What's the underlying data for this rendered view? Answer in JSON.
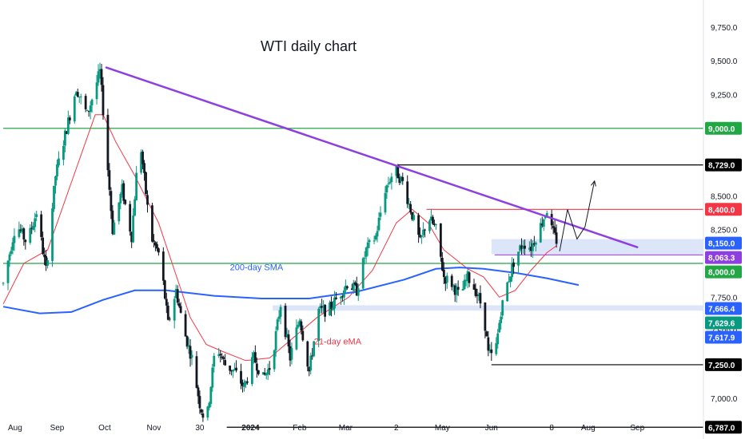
{
  "chart_data": {
    "type": "candlestick",
    "title": "WTI daily chart",
    "xlabel": "",
    "ylabel": "",
    "ylim": [
      6700,
      9950
    ],
    "grid": false,
    "x_ticks": [
      {
        "label": "Aug",
        "day": 0
      },
      {
        "label": "Sep",
        "day": 31
      },
      {
        "label": "Oct",
        "day": 61
      },
      {
        "label": "Nov",
        "day": 92
      },
      {
        "label": "30",
        "day": 121
      },
      {
        "label": "2024",
        "day": 153
      },
      {
        "label": "Feb",
        "day": 184
      },
      {
        "label": "Mar",
        "day": 213
      },
      {
        "label": "2",
        "day": 245
      },
      {
        "label": "May",
        "day": 274
      },
      {
        "label": "Jun",
        "day": 305
      },
      {
        "label": "8",
        "day": 343
      },
      {
        "label": "Aug",
        "day": 366
      },
      {
        "label": "Sep",
        "day": 397
      }
    ],
    "y_ticks": [
      "7,000.0",
      "7,250.0",
      "7,500.0",
      "7,750.0",
      "8,250.0",
      "8,500.0",
      "9,250.0",
      "9,500.0",
      "9,750.0"
    ],
    "price_path": [
      [
        -3,
        7850
      ],
      [
        5,
        8300
      ],
      [
        12,
        8150
      ],
      [
        18,
        8380
      ],
      [
        24,
        7950
      ],
      [
        30,
        8650
      ],
      [
        37,
        9000
      ],
      [
        43,
        9300
      ],
      [
        50,
        9100
      ],
      [
        58,
        9420
      ],
      [
        62,
        8850
      ],
      [
        66,
        8250
      ],
      [
        72,
        8550
      ],
      [
        78,
        8200
      ],
      [
        83,
        8950
      ],
      [
        90,
        8200
      ],
      [
        96,
        8050
      ],
      [
        101,
        7550
      ],
      [
        106,
        7800
      ],
      [
        111,
        7500
      ],
      [
        116,
        7300
      ],
      [
        121,
        6960
      ],
      [
        125,
        6800
      ],
      [
        131,
        7400
      ],
      [
        137,
        7250
      ],
      [
        143,
        7200
      ],
      [
        149,
        7080
      ],
      [
        155,
        7300
      ],
      [
        161,
        7150
      ],
      [
        166,
        7250
      ],
      [
        172,
        7700
      ],
      [
        178,
        7300
      ],
      [
        184,
        7600
      ],
      [
        190,
        7200
      ],
      [
        196,
        7650
      ],
      [
        202,
        7650
      ],
      [
        208,
        7750
      ],
      [
        214,
        7850
      ],
      [
        220,
        7800
      ],
      [
        226,
        8100
      ],
      [
        232,
        8200
      ],
      [
        238,
        8550
      ],
      [
        244,
        8700
      ],
      [
        249,
        8600
      ],
      [
        254,
        8400
      ],
      [
        260,
        8150
      ],
      [
        265,
        8350
      ],
      [
        270,
        8250
      ],
      [
        275,
        7900
      ],
      [
        280,
        7850
      ],
      [
        285,
        7750
      ],
      [
        290,
        7900
      ],
      [
        295,
        7800
      ],
      [
        300,
        7650
      ],
      [
        303,
        7330
      ],
      [
        307,
        7300
      ],
      [
        311,
        7650
      ],
      [
        315,
        7850
      ],
      [
        320,
        8050
      ],
      [
        325,
        8150
      ],
      [
        330,
        8120
      ],
      [
        335,
        8250
      ],
      [
        340,
        8400
      ],
      [
        343,
        8250
      ],
      [
        346,
        8170
      ]
    ],
    "series": [
      {
        "name": "21-day eMA",
        "color": "#f23645",
        "points": [
          [
            -3,
            7700
          ],
          [
            10,
            8000
          ],
          [
            25,
            8100
          ],
          [
            40,
            8600
          ],
          [
            55,
            9100
          ],
          [
            60,
            9100
          ],
          [
            68,
            8900
          ],
          [
            80,
            8650
          ],
          [
            95,
            8300
          ],
          [
            105,
            7950
          ],
          [
            115,
            7600
          ],
          [
            125,
            7400
          ],
          [
            135,
            7350
          ],
          [
            150,
            7280
          ],
          [
            165,
            7300
          ],
          [
            180,
            7450
          ],
          [
            195,
            7600
          ],
          [
            215,
            7750
          ],
          [
            230,
            7950
          ],
          [
            245,
            8300
          ],
          [
            255,
            8400
          ],
          [
            265,
            8300
          ],
          [
            275,
            8100
          ],
          [
            290,
            7960
          ],
          [
            300,
            7900
          ],
          [
            310,
            7750
          ],
          [
            320,
            7800
          ],
          [
            330,
            7950
          ],
          [
            340,
            8080
          ],
          [
            346,
            8130
          ]
        ]
      },
      {
        "name": "200-day SMA",
        "color": "#2962ff",
        "points": [
          [
            -3,
            7680
          ],
          [
            20,
            7630
          ],
          [
            40,
            7640
          ],
          [
            60,
            7730
          ],
          [
            80,
            7800
          ],
          [
            100,
            7800
          ],
          [
            130,
            7760
          ],
          [
            160,
            7740
          ],
          [
            190,
            7740
          ],
          [
            220,
            7790
          ],
          [
            250,
            7880
          ],
          [
            270,
            7960
          ],
          [
            285,
            7970
          ],
          [
            300,
            7960
          ],
          [
            320,
            7930
          ],
          [
            340,
            7890
          ],
          [
            360,
            7840
          ]
        ]
      }
    ],
    "trendline": {
      "from": [
        62,
        9450
      ],
      "to": [
        397,
        8120
      ],
      "color": "#8e3fe0"
    },
    "horizontal_lines": [
      {
        "value": 9000,
        "label": "9,000.0",
        "color": "#22a745",
        "x_start": -3
      },
      {
        "value": 8729,
        "label": "8,729.0",
        "color": "#000000",
        "x_start": 246
      },
      {
        "value": 8400,
        "label": "8,400.0",
        "color": "#f23645",
        "x_start": 264
      },
      {
        "value": 8063.3,
        "label": "8,063.3",
        "color": "#8e3fe0",
        "x_start": 307
      },
      {
        "value": 8000,
        "label": "8,000.0",
        "color": "#22a745",
        "x_start": -3
      },
      {
        "value": 7250,
        "label": "7,250.0",
        "color": "#000000",
        "x_start": 305
      },
      {
        "value": 6787,
        "label": "6,787.0",
        "color": "#000000",
        "x_start": 138
      }
    ],
    "zones": [
      {
        "from": 8070,
        "to": 8180,
        "x_start": 305,
        "color": "#d1dcf5"
      },
      {
        "from": 7650,
        "to": 7690,
        "x_start": 167,
        "color": "#d1dcf5"
      }
    ],
    "price_badges": [
      {
        "label": "8,150.0",
        "value": 8150,
        "bg": "#2962ff",
        "fg": "#ffffff"
      },
      {
        "label": "7,666.4",
        "value": 7666.4,
        "bg": "#2962ff",
        "fg": "#ffffff"
      },
      {
        "label": "7,629.6",
        "value": 7629.6,
        "bg": "#089981",
        "fg": "#ffffff"
      },
      {
        "label": "7,617.9",
        "value": 7617.9,
        "bg": "#2962ff",
        "fg": "#ffffff"
      }
    ],
    "annotations": [
      {
        "text": "200-day SMA",
        "color": "#2962ff",
        "day": 140,
        "value": 7950
      },
      {
        "text": "21-day eMA",
        "color": "#f23645",
        "day": 193,
        "value": 7400
      }
    ],
    "projection": [
      [
        348,
        8090
      ],
      [
        353,
        8400
      ],
      [
        359,
        8180
      ],
      [
        364,
        8270
      ],
      [
        370,
        8610
      ]
    ],
    "last_candle_day": 346
  }
}
